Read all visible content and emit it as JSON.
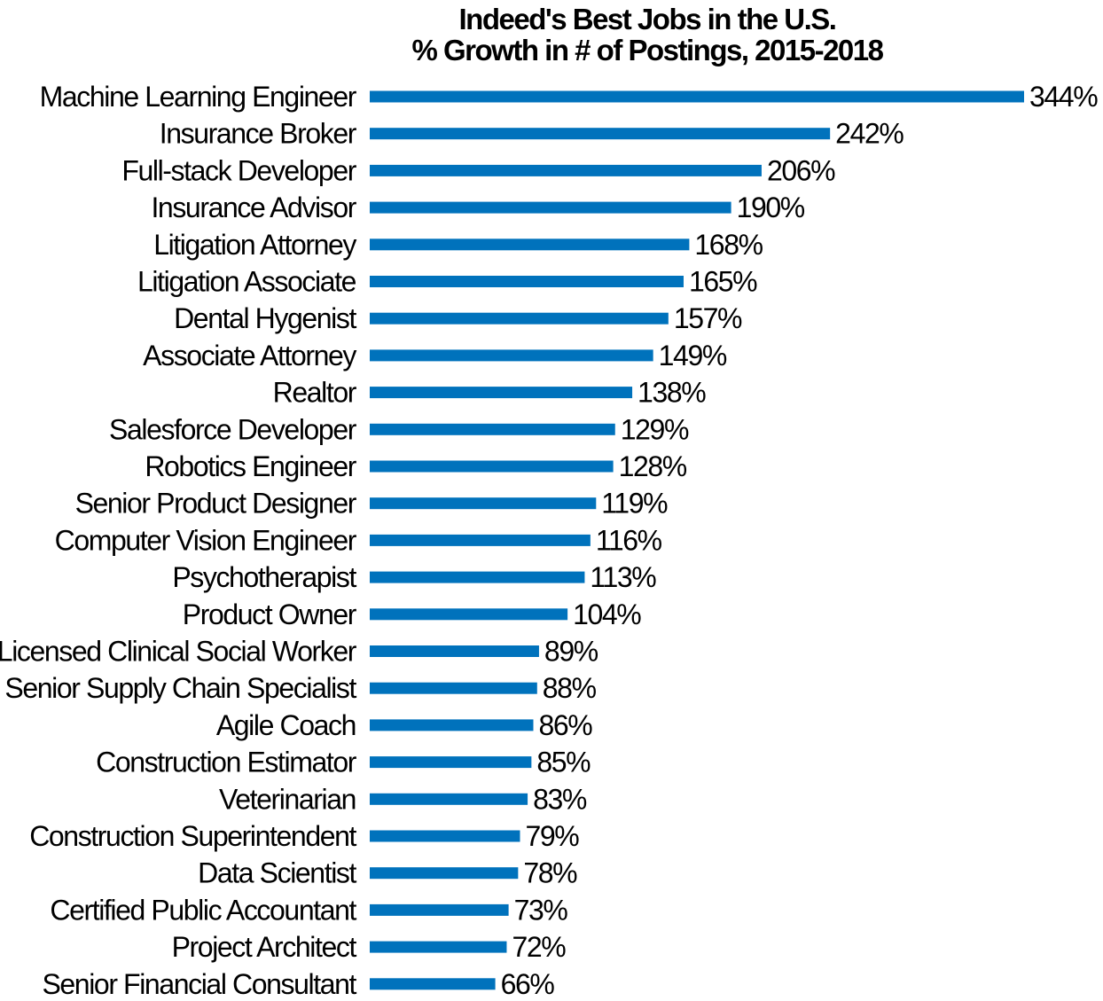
{
  "chart_data": {
    "type": "bar",
    "orientation": "horizontal",
    "title_lines": [
      "Indeed's Best Jobs in the U.S.",
      "% Growth in # of Postings, 2015-2018"
    ],
    "xlabel": "",
    "ylabel": "",
    "value_suffix": "%",
    "xlim": [
      0,
      344
    ],
    "grid": false,
    "bar_color": "#0072bc",
    "categories": [
      "Machine Learning Engineer",
      "Insurance Broker",
      "Full-stack Developer",
      "Insurance Advisor",
      "Litigation Attorney",
      "Litigation Associate",
      "Dental Hygenist",
      "Associate Attorney",
      "Realtor",
      "Salesforce Developer",
      "Robotics Engineer",
      "Senior Product Designer",
      "Computer Vision Engineer",
      "Psychotherapist",
      "Product Owner",
      "Licensed Clinical Social Worker",
      "Senior Supply Chain Specialist",
      "Agile Coach",
      "Construction Estimator",
      "Veterinarian",
      "Construction Superintendent",
      "Data Scientist",
      "Certified Public Accountant",
      "Project Architect",
      "Senior Financial Consultant"
    ],
    "values": [
      344,
      242,
      206,
      190,
      168,
      165,
      157,
      149,
      138,
      129,
      128,
      119,
      116,
      113,
      104,
      89,
      88,
      86,
      85,
      83,
      79,
      78,
      73,
      72,
      66
    ],
    "data_labels": [
      "344%",
      "242%",
      "206%",
      "190%",
      "168%",
      "165%",
      "157%",
      "149%",
      "138%",
      "129%",
      "128%",
      "119%",
      "116%",
      "113%",
      "104%",
      "89%",
      "88%",
      "86%",
      "85%",
      "83%",
      "79%",
      "78%",
      "73%",
      "72%",
      "66%"
    ]
  }
}
